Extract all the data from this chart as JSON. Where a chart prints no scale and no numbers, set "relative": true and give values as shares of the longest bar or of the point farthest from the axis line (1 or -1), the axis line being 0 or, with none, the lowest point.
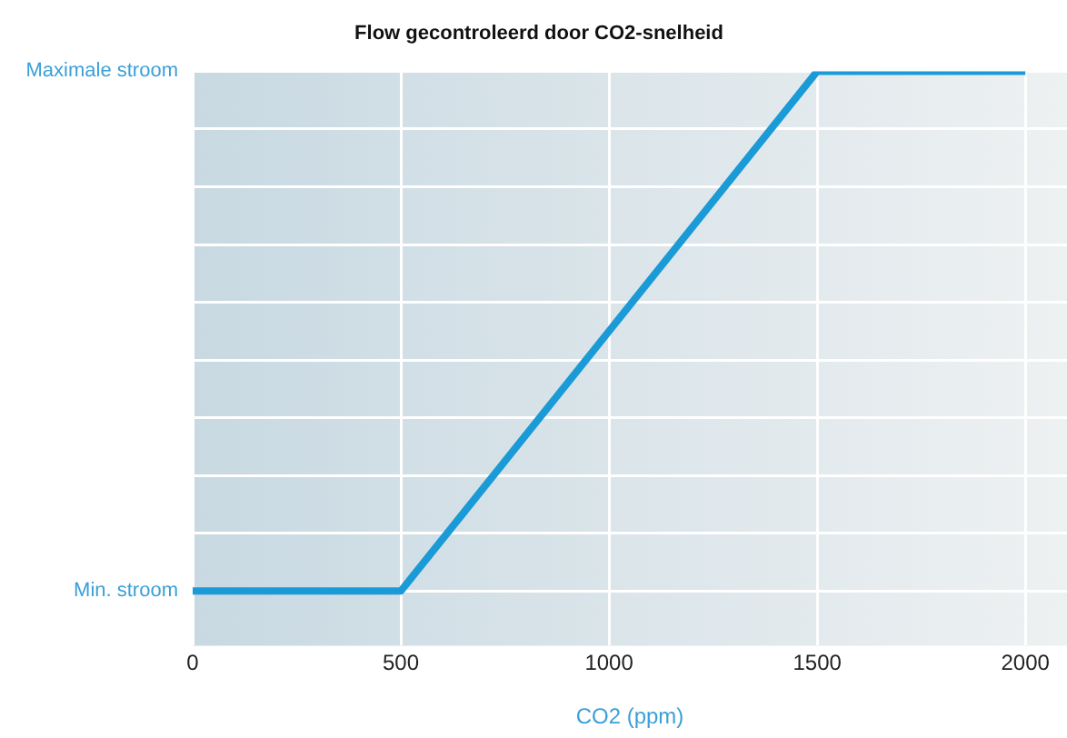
{
  "chart_data": {
    "type": "line",
    "title": "Flow gecontroleerd door CO2-snelheid",
    "xlabel": "CO2 (ppm)",
    "x": [
      0,
      500,
      1500,
      2000
    ],
    "series": [
      {
        "color": "#1a9ad6",
        "values": [
          0,
          0,
          1,
          1
        ]
      }
    ],
    "relative": true,
    "annotations": [
      "Min. stroom",
      "Maximale stroom"
    ],
    "xlim": [
      0,
      2100
    ],
    "xticks": [
      0,
      500,
      1000,
      1500,
      2000
    ],
    "grid": true,
    "legend": false,
    "marker": "none",
    "line_style": "solid"
  }
}
